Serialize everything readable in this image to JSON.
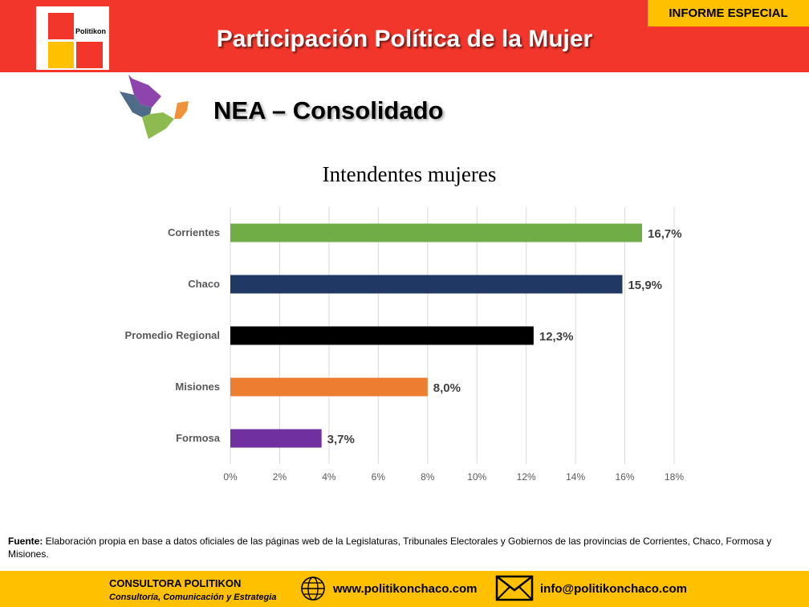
{
  "header": {
    "logo_text": "Politikon",
    "title": "Participación Política de la Mujer",
    "badge": "INFORME ESPECIAL"
  },
  "subtitle": "NEA – Consolidado",
  "chart_data": {
    "type": "bar",
    "orientation": "horizontal",
    "title": "Intendentes mujeres",
    "categories": [
      "Corrientes",
      "Chaco",
      "Promedio Regional",
      "Misiones",
      "Formosa"
    ],
    "values": [
      16.7,
      15.9,
      12.3,
      8.0,
      3.7
    ],
    "value_labels": [
      "16,7%",
      "15,9%",
      "12,3%",
      "8,0%",
      "3,7%"
    ],
    "bar_colors": [
      "#70ad47",
      "#1f3864",
      "#000000",
      "#ed7d31",
      "#7030a0"
    ],
    "xlim": [
      0,
      18
    ],
    "xticks": [
      0,
      2,
      4,
      6,
      8,
      10,
      12,
      14,
      16,
      18
    ],
    "xtick_labels": [
      "0%",
      "2%",
      "4%",
      "6%",
      "8%",
      "10%",
      "12%",
      "14%",
      "16%",
      "18%"
    ],
    "grid": "vertical",
    "legend": "none"
  },
  "footnote": {
    "label": "Fuente:",
    "text": " Elaboración propia en base a datos oficiales de las páginas web de la Legislaturas, Tribunales Electorales y Gobiernos de las provincias de Corrientes, Chaco, Formosa y Misiones."
  },
  "footer": {
    "company": "CONSULTORA POLITIKON",
    "tagline": "Consultoría, Comunicación y Estrategia",
    "website": "www.politikonchaco.com",
    "email": "info@politikonchaco.com",
    "website_icon": "globe-icon",
    "email_icon": "envelope-icon"
  }
}
